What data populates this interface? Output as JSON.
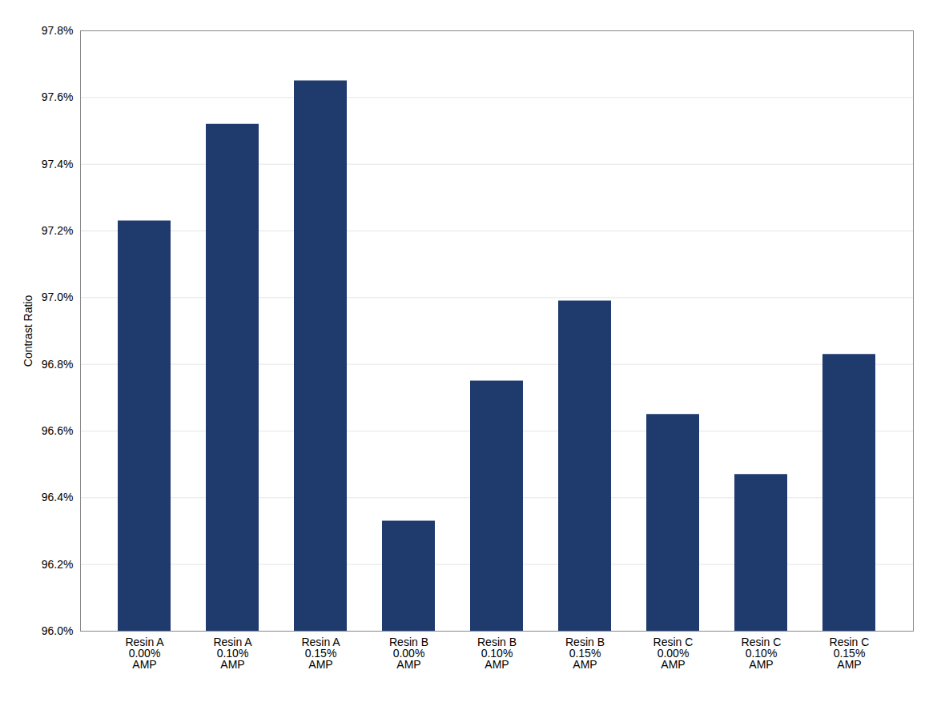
{
  "chart_data": {
    "type": "bar",
    "categories": [
      "Resin A\n0.00%\nAMP",
      "Resin A\n0.10%\nAMP",
      "Resin A\n0.15%\nAMP",
      "Resin B\n0.00%\nAMP",
      "Resin B\n0.10%\nAMP",
      "Resin B\n0.15%\nAMP",
      "Resin C\n0.00%\nAMP",
      "Resin C\n0.10%\nAMP",
      "Resin C\n0.15%\nAMP"
    ],
    "values": [
      97.23,
      97.52,
      97.65,
      96.33,
      96.75,
      96.99,
      96.65,
      96.47,
      96.83
    ],
    "color": "#1F3B6E",
    "ylabel": "Contrast Ratio",
    "ylim": [
      96.0,
      97.8
    ],
    "yticks": [
      {
        "value": 96.0,
        "label": "96.0%"
      },
      {
        "value": 96.2,
        "label": "96.2%"
      },
      {
        "value": 96.4,
        "label": "96.4%"
      },
      {
        "value": 96.6,
        "label": "96.6%"
      },
      {
        "value": 96.8,
        "label": "96.8%"
      },
      {
        "value": 97.0,
        "label": "97.0%"
      },
      {
        "value": 97.2,
        "label": "97.2%"
      },
      {
        "value": 97.4,
        "label": "97.4%"
      },
      {
        "value": 97.6,
        "label": "97.6%"
      },
      {
        "value": 97.8,
        "label": "97.8%"
      }
    ],
    "grid": true
  }
}
